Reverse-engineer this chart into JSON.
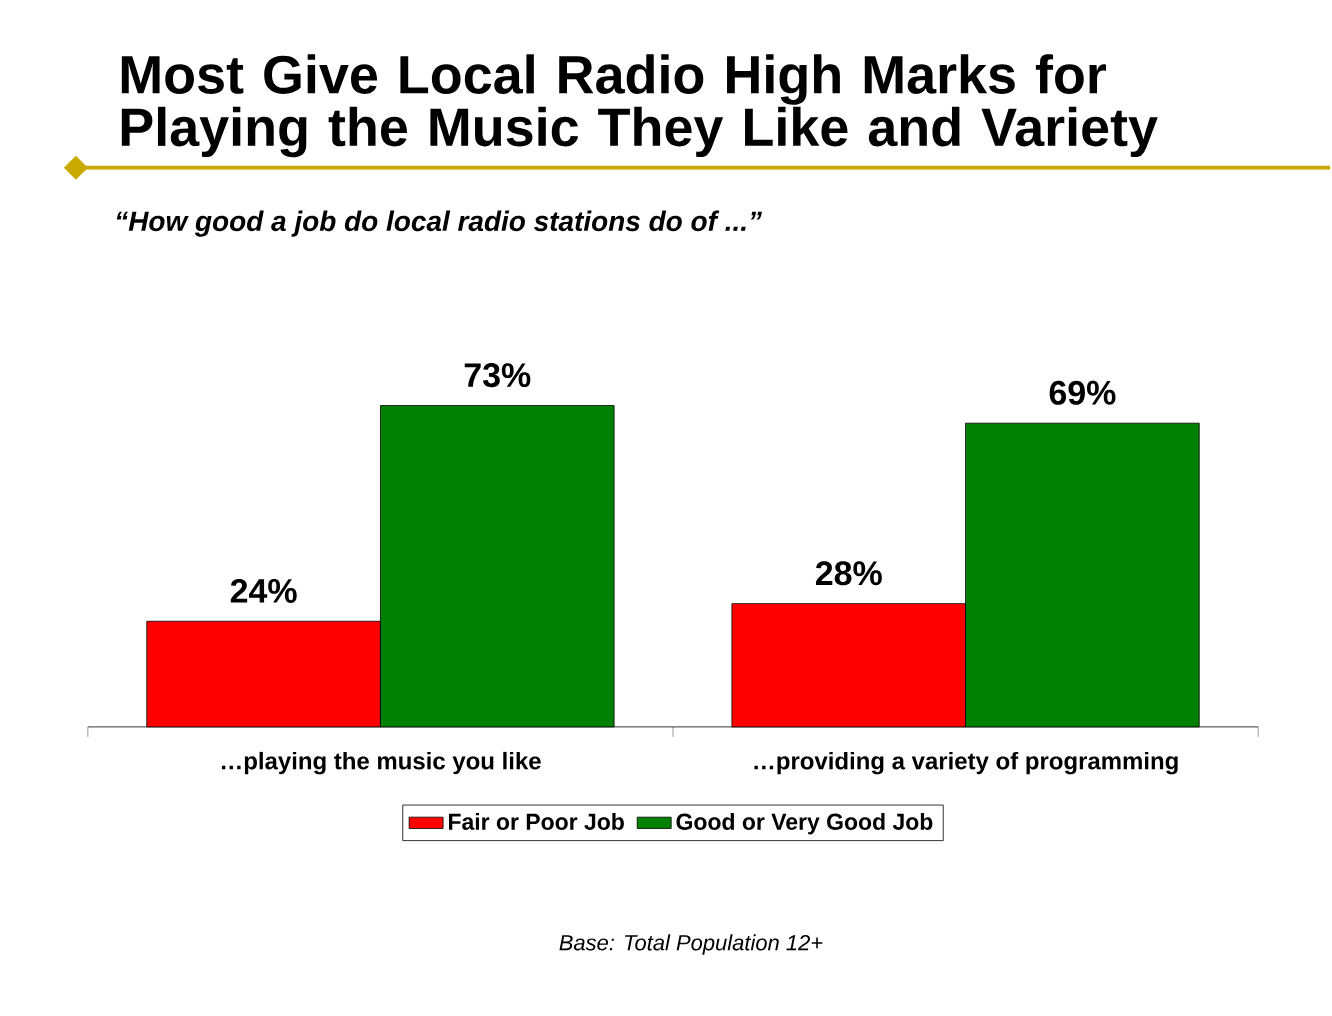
{
  "chart_data": {
    "type": "bar",
    "title": "Most Give Local Radio High Marks for Playing the Music They Like and Variety",
    "subtitle": "“How good a job do local radio stations do of ...”",
    "categories": [
      "…playing the music you like",
      "…providing a variety of programming"
    ],
    "series": [
      {
        "name": "Fair or Poor Job",
        "color": "#ff0000",
        "values": [
          24,
          28
        ],
        "value_labels": [
          "24%",
          "28%"
        ]
      },
      {
        "name": "Good or Very Good Job",
        "color": "#008000",
        "values": [
          73,
          69
        ],
        "value_labels": [
          "73%",
          "69%"
        ]
      }
    ],
    "legend": "bottom",
    "annotations": [
      "Base: Total Population 12+"
    ]
  }
}
